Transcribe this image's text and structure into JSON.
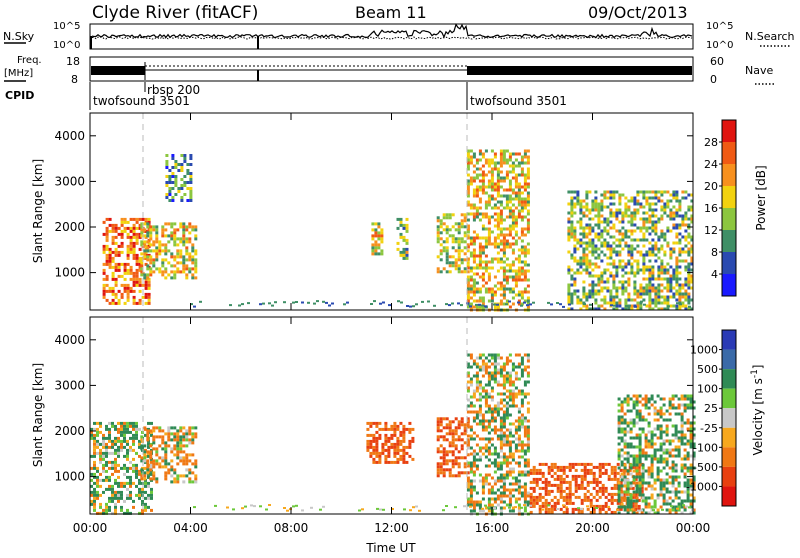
{
  "header": {
    "station": "Clyde River (fitACF)",
    "beam": "Beam 11",
    "date": "09/Oct/2013"
  },
  "summary": {
    "nsky_label": "N.Sky",
    "nsearch_label": "N.Search",
    "nsky_ticks": [
      "10^5",
      "10^0"
    ],
    "nsearch_ticks": [
      "10^5",
      "10^0"
    ],
    "freq_label": "Freq.",
    "freq_unit": "[MHz]",
    "freq_ticks": [
      "18",
      "8"
    ],
    "nave_label": "Nave",
    "nave_ticks": [
      "60",
      "0"
    ],
    "cpid_label": "CPID",
    "cpid_programs": [
      {
        "name": "twofsound 3501",
        "start": 0,
        "end": 2
      },
      {
        "name": "rbsp 200",
        "start": 2,
        "end": 15
      },
      {
        "name": "twofsound 3501",
        "start": 15,
        "end": 24
      }
    ]
  },
  "panels": {
    "ylabel": "Slant Range [km]",
    "yticks": [
      "1000",
      "2000",
      "3000",
      "4000"
    ],
    "xlabel": "Time UT",
    "xticks": [
      "00:00",
      "04:00",
      "08:00",
      "12:00",
      "16:00",
      "20:00",
      "00:00"
    ]
  },
  "power_scale": {
    "label": "Power [dB]",
    "ticks": [
      "4",
      "8",
      "12",
      "16",
      "20",
      "24",
      "28"
    ],
    "colors": [
      "#1a1aff",
      "#2a4ab0",
      "#3f8f66",
      "#8cc63f",
      "#f2d20f",
      "#f7901e",
      "#f05a14",
      "#e0140f"
    ]
  },
  "velocity_scale": {
    "label": "Velocity [m s^-1]",
    "ticks": [
      "1000",
      "500",
      "100",
      "25",
      "-25",
      "-100",
      "-500",
      "-1000"
    ],
    "colors": [
      "#2a3ab5",
      "#3a6aa8",
      "#2f8a55",
      "#6cc83a",
      "#c8c8c8",
      "#f7a81e",
      "#f07814",
      "#e84010",
      "#e0140f"
    ]
  },
  "chart_data": [
    {
      "type": "heatmap",
      "title": "Beam 11",
      "xlabel": "Time UT",
      "ylabel": "Slant Range [km]",
      "xlim": [
        0,
        24
      ],
      "ylim": [
        180,
        4500
      ],
      "colorbar_label": "Power [dB]",
      "colorbar_range": [
        0,
        32
      ],
      "echo_regions": [
        {
          "t_start": 0.5,
          "t_end": 2.4,
          "range_min": 300,
          "range_max": 2200,
          "value": 24
        },
        {
          "t_start": 2.0,
          "t_end": 4.2,
          "range_min": 900,
          "range_max": 2100,
          "value": 18
        },
        {
          "t_start": 3.0,
          "t_end": 4.0,
          "range_min": 2600,
          "range_max": 3600,
          "value": 10
        },
        {
          "t_start": 11.2,
          "t_end": 11.6,
          "range_min": 1400,
          "range_max": 2100,
          "value": 18
        },
        {
          "t_start": 12.2,
          "t_end": 12.6,
          "range_min": 1300,
          "range_max": 2200,
          "value": 14
        },
        {
          "t_start": 13.8,
          "t_end": 15.0,
          "range_min": 1000,
          "range_max": 2300,
          "value": 16
        },
        {
          "t_start": 15.0,
          "t_end": 17.5,
          "range_min": 200,
          "range_max": 3700,
          "value": 18
        },
        {
          "t_start": 19.0,
          "t_end": 24.0,
          "range_min": 200,
          "range_max": 2800,
          "value": 14
        }
      ]
    },
    {
      "type": "heatmap",
      "title": "Beam 11",
      "xlabel": "Time UT",
      "ylabel": "Slant Range [km]",
      "xlim": [
        0,
        24
      ],
      "ylim": [
        180,
        4500
      ],
      "colorbar_label": "Velocity [m s^-1]",
      "colorbar_range": [
        -1000,
        1000
      ],
      "echo_regions": [
        {
          "t_start": 0.0,
          "t_end": 2.4,
          "range_min": 200,
          "range_max": 2200,
          "value": 100
        },
        {
          "t_start": 2.0,
          "t_end": 4.2,
          "range_min": 900,
          "range_max": 2100,
          "value": -100
        },
        {
          "t_start": 11.0,
          "t_end": 12.8,
          "range_min": 1300,
          "range_max": 2200,
          "value": -500
        },
        {
          "t_start": 13.8,
          "t_end": 15.0,
          "range_min": 1000,
          "range_max": 2300,
          "value": -500
        },
        {
          "t_start": 15.0,
          "t_end": 17.5,
          "range_min": 200,
          "range_max": 3700,
          "value": 0
        },
        {
          "t_start": 17.5,
          "t_end": 22.0,
          "range_min": 200,
          "range_max": 1300,
          "value": -500
        },
        {
          "t_start": 21.0,
          "t_end": 24.0,
          "range_min": 200,
          "range_max": 2800,
          "value": 100
        }
      ]
    }
  ]
}
